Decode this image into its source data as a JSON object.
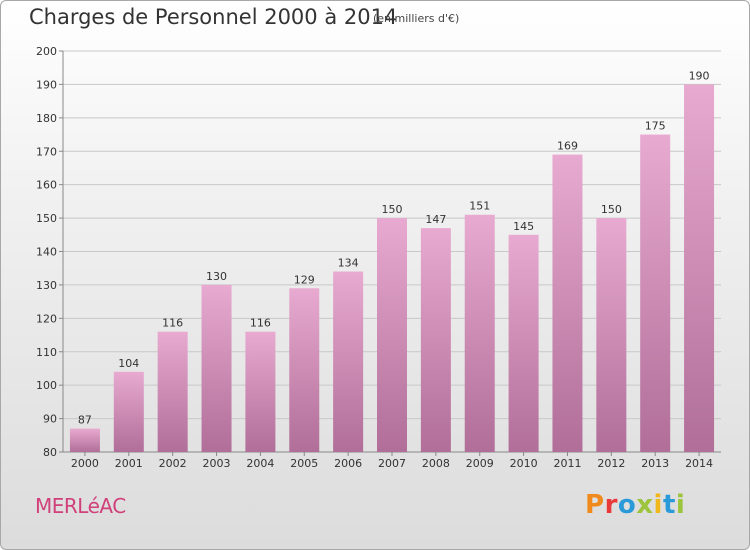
{
  "header": {
    "title": "Charges de Personnel 2000 à 2014",
    "subtitle": "(en milliers d'€)"
  },
  "footer": {
    "commune": "MERLéAC",
    "brand_letters": [
      "P",
      "r",
      "o",
      "x",
      "i",
      "t",
      "i"
    ]
  },
  "colors": {
    "bar_light": "#e8aad0",
    "bar_dark": "#b06e98",
    "grid": "#c8c8c8",
    "axis": "#888888",
    "commune_text": "#d0407a",
    "brand_colors": [
      "#f08a1c",
      "#e83838",
      "#2a9ad8",
      "#9cc43c",
      "#f0b81c",
      "#2a9ad8",
      "#9cc43c"
    ]
  },
  "chart_data": {
    "type": "bar",
    "title": "Charges de Personnel 2000 à 2014",
    "subtitle": "(en milliers d'€)",
    "categories": [
      "2000",
      "2001",
      "2002",
      "2003",
      "2004",
      "2005",
      "2006",
      "2007",
      "2008",
      "2009",
      "2010",
      "2011",
      "2012",
      "2013",
      "2014"
    ],
    "values": [
      87,
      104,
      116,
      130,
      116,
      129,
      134,
      150,
      147,
      151,
      145,
      169,
      150,
      175,
      190
    ],
    "ylim": [
      80,
      200
    ],
    "yticks": [
      80,
      90,
      100,
      110,
      120,
      130,
      140,
      150,
      160,
      170,
      180,
      190,
      200
    ],
    "grid": true,
    "legend": "none",
    "data_labels": true
  }
}
